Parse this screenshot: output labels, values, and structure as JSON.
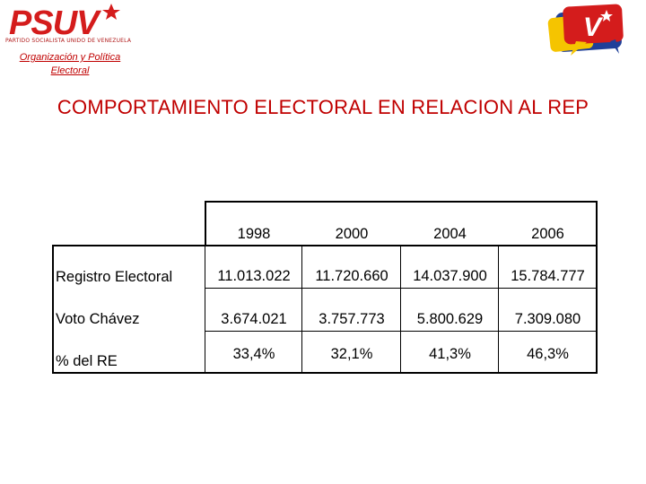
{
  "header": {
    "logo_text": "PSUV",
    "logo_subtitle": "PARTIDO SOCIALISTA UNIDO DE VENEZUELA",
    "department_line1": "Organización y Política",
    "department_line2": "Electoral",
    "corner_logo_letter": "V"
  },
  "title": "COMPORTAMIENTO ELECTORAL EN RELACION AL REP",
  "table": {
    "years": [
      "1998",
      "2000",
      "2004",
      "2006"
    ],
    "rows": [
      {
        "label": "Registro Electoral",
        "values": [
          "11.013.022",
          "11.720.660",
          "14.037.900",
          "15.784.777"
        ]
      },
      {
        "label": "Voto Chávez",
        "values": [
          "3.674.021",
          "3.757.773",
          "5.800.629",
          "7.309.080"
        ]
      },
      {
        "label": "% del RE",
        "values": [
          "33,4%",
          "32,1%",
          "41,3%",
          "46,3%"
        ]
      }
    ]
  },
  "colors": {
    "brand_red": "#c00000",
    "logo_red": "#d41c1c",
    "logo_yellow": "#f5c400",
    "logo_blue": "#1f3f99"
  }
}
